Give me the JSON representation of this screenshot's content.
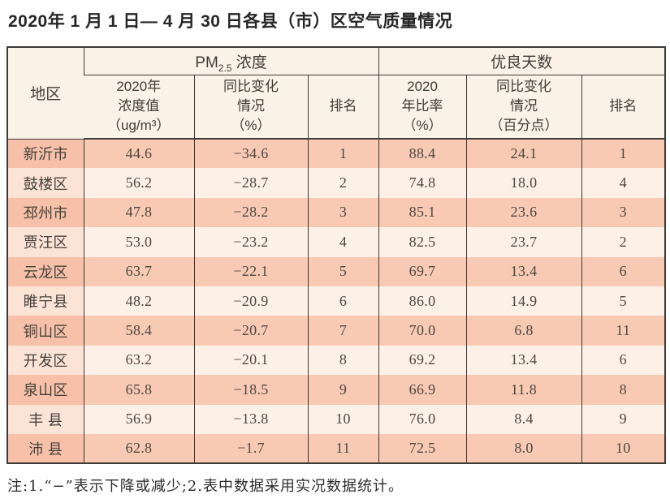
{
  "title": "2020年 1 月 1 日— 4 月 30 日各县（市）区空气质量情况",
  "note": "注:1.“−”表示下降或减少;2.表中数据采用实况数据统计。",
  "table": {
    "header": {
      "region": "地区",
      "pm_group": {
        "prefix": "PM",
        "sub": "2.5",
        "suffix": " 浓度"
      },
      "days_group": "优良天数",
      "pm_value": "2020年\n浓度值\n（ug/m³）",
      "pm_change": "同比变化\n情况\n（%）",
      "pm_rank": "排名",
      "days_rate": "2020\n年比率\n（%）",
      "days_change": "同比变化\n情况\n（百分点）",
      "days_rank": "排名"
    },
    "rows": [
      {
        "region": "新沂市",
        "pm_value": "44.6",
        "pm_change": "−34.6",
        "pm_rank": "1",
        "days_rate": "88.4",
        "days_change": "24.1",
        "days_rank": "1"
      },
      {
        "region": "鼓楼区",
        "pm_value": "56.2",
        "pm_change": "−28.7",
        "pm_rank": "2",
        "days_rate": "74.8",
        "days_change": "18.0",
        "days_rank": "4"
      },
      {
        "region": "邳州市",
        "pm_value": "47.8",
        "pm_change": "−28.2",
        "pm_rank": "3",
        "days_rate": "85.1",
        "days_change": "23.6",
        "days_rank": "3"
      },
      {
        "region": "贾汪区",
        "pm_value": "53.0",
        "pm_change": "−23.2",
        "pm_rank": "4",
        "days_rate": "82.5",
        "days_change": "23.7",
        "days_rank": "2"
      },
      {
        "region": "云龙区",
        "pm_value": "63.7",
        "pm_change": "−22.1",
        "pm_rank": "5",
        "days_rate": "69.7",
        "days_change": "13.4",
        "days_rank": "6"
      },
      {
        "region": "睢宁县",
        "pm_value": "48.2",
        "pm_change": "−20.9",
        "pm_rank": "6",
        "days_rate": "86.0",
        "days_change": "14.9",
        "days_rank": "5"
      },
      {
        "region": "铜山区",
        "pm_value": "58.4",
        "pm_change": "−20.7",
        "pm_rank": "7",
        "days_rate": "70.0",
        "days_change": "6.8",
        "days_rank": "11"
      },
      {
        "region": "开发区",
        "pm_value": "63.2",
        "pm_change": "−20.1",
        "pm_rank": "8",
        "days_rate": "69.2",
        "days_change": "13.4",
        "days_rank": "6"
      },
      {
        "region": "泉山区",
        "pm_value": "65.8",
        "pm_change": "−18.5",
        "pm_rank": "9",
        "days_rate": "66.9",
        "days_change": "11.8",
        "days_rank": "8"
      },
      {
        "region": "丰 县",
        "pm_value": "56.9",
        "pm_change": "−13.8",
        "pm_rank": "10",
        "days_rate": "76.0",
        "days_change": "8.4",
        "days_rank": "9"
      },
      {
        "region": "沛 县",
        "pm_value": "62.8",
        "pm_change": "−1.7",
        "pm_rank": "11",
        "days_rate": "72.5",
        "days_change": "8.0",
        "days_rank": "10"
      }
    ]
  },
  "colors": {
    "row_odd_bg": "#f8cab3",
    "row_even_bg": "#fdf0e7",
    "header_bg": "#faf2e6",
    "border": "#3d3a37"
  }
}
